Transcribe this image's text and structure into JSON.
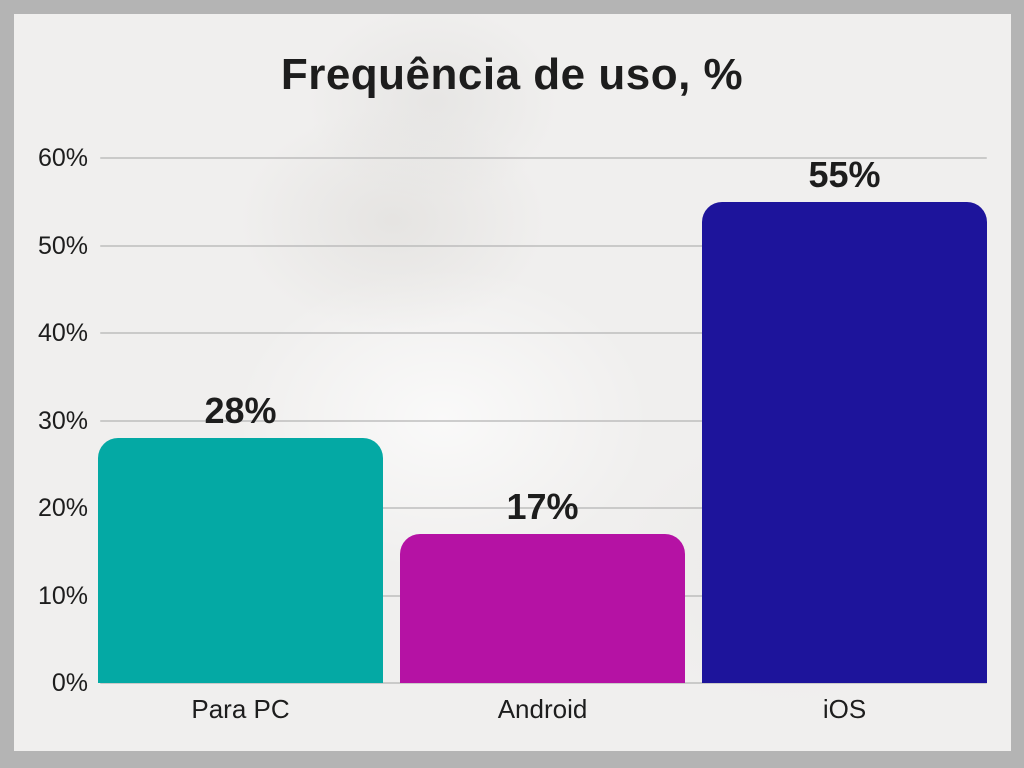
{
  "chart_data": {
    "type": "bar",
    "title": "Frequência de uso, %",
    "categories": [
      "Para PC",
      "Android",
      "iOS"
    ],
    "values": [
      28,
      17,
      55
    ],
    "value_labels": [
      "28%",
      "17%",
      "55%"
    ],
    "y_tick_labels": [
      "0%",
      "10%",
      "20%",
      "30%",
      "40%",
      "50%",
      "60%"
    ],
    "ylim": [
      0,
      60
    ],
    "y_tick_step": 10,
    "grid": true,
    "legend": false,
    "bar_colors": [
      "#04a9a4",
      "#b512a4",
      "#1d149b"
    ],
    "colors": {
      "background": "#f0efee",
      "frame": "#b4b4b4",
      "text": "#1d1d1d",
      "gridline": "#b5b5b5"
    }
  }
}
